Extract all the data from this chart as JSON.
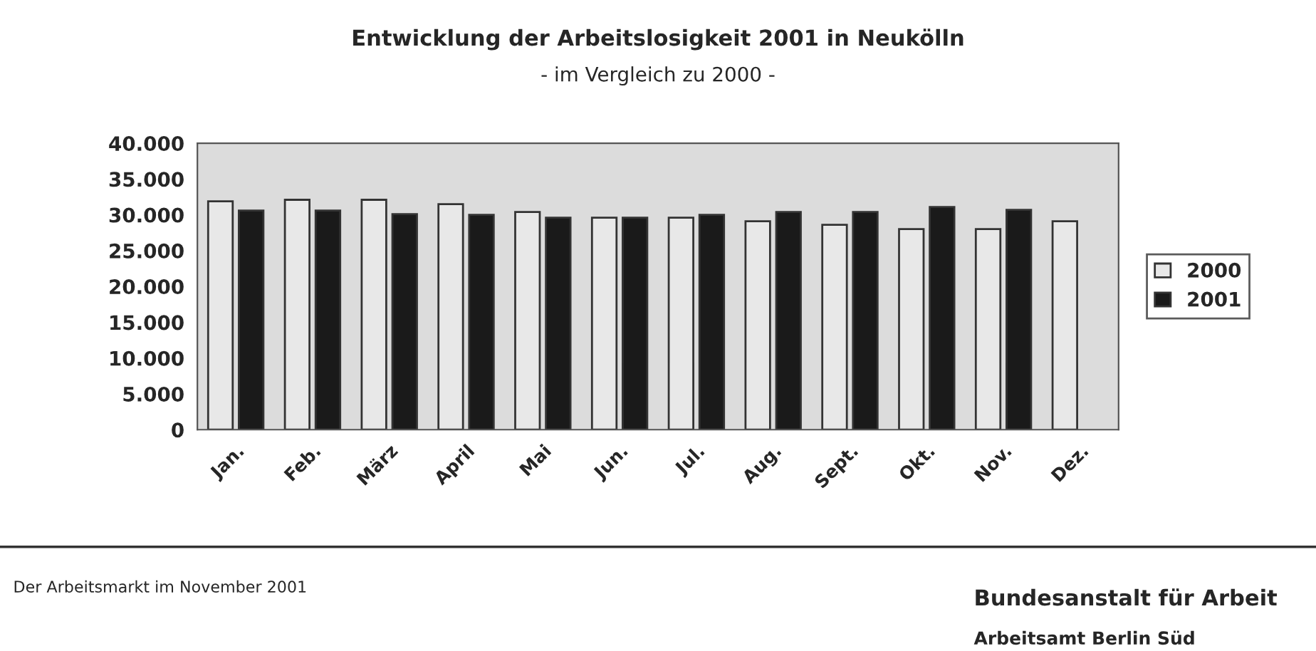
{
  "chart_data": {
    "type": "bar",
    "title": "Entwicklung der Arbeitslosigkeit 2001 in Neukölln",
    "subtitle": "- im Vergleich zu 2000 -",
    "categories": [
      "Jan.",
      "Feb.",
      "März",
      "April",
      "Mai",
      "Jun.",
      "Jul.",
      "Aug.",
      "Sept.",
      "Okt.",
      "Nov.",
      "Dez."
    ],
    "series": [
      {
        "name": "2000",
        "color": "#e8e8e8",
        "values": [
          31900,
          32100,
          32100,
          31500,
          30400,
          29600,
          29600,
          29100,
          28600,
          28000,
          28000,
          29100
        ]
      },
      {
        "name": "2001",
        "color": "#1a1a1a",
        "values": [
          30600,
          30600,
          30100,
          30000,
          29600,
          29600,
          30000,
          30400,
          30400,
          31100,
          30700,
          null
        ]
      }
    ],
    "ylim": [
      0,
      40000
    ],
    "yticks": [
      {
        "value": 0,
        "label": "0"
      },
      {
        "value": 5000,
        "label": "5.000"
      },
      {
        "value": 10000,
        "label": "10.000"
      },
      {
        "value": 15000,
        "label": "15.000"
      },
      {
        "value": 20000,
        "label": "20.000"
      },
      {
        "value": 25000,
        "label": "25.000"
      },
      {
        "value": 30000,
        "label": "30.000"
      },
      {
        "value": 35000,
        "label": "35.000"
      },
      {
        "value": 40000,
        "label": "40.000"
      }
    ],
    "legend": "right",
    "annotations": [
      "Der Arbeitsmarkt im November 2001",
      "Bundesanstalt für Arbeit",
      "Arbeitsamt Berlin Süd"
    ]
  }
}
